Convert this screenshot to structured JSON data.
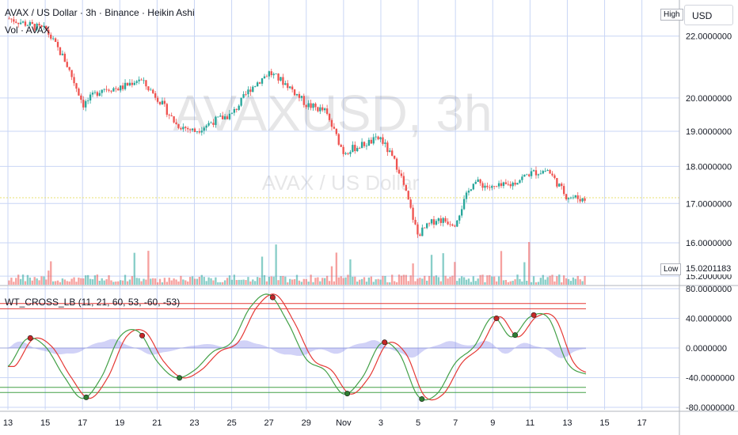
{
  "header": {
    "title": "AVAX / US Dollar · 3h · Binance · Heikin Ashi",
    "volume_label": "Vol · AVAX",
    "oscillator_label": "WT_CROSS_LB (11, 21, 60, 53, -60, -53)"
  },
  "watermark": {
    "main": "AVAXUSD, 3h",
    "sub": "AVAX / US Dollar"
  },
  "scale": {
    "currency": "USD",
    "high_flag": "High",
    "low_flag": "Low",
    "low_value": "15.0201183"
  },
  "colors": {
    "up": "#26a69a",
    "down": "#ef5350",
    "wave1": "#e53935",
    "wave2": "#43a047",
    "diff": "#7b7fe8",
    "ob": "#e53935",
    "os": "#43a047",
    "grid": "#c9d6f5"
  },
  "chart_data": [
    {
      "type": "candlestick",
      "title": "AVAX / US Dollar · 3h · Binance · Heikin Ashi",
      "y_ticks": [
        "22.0000000",
        "20.0000000",
        "19.0000000",
        "18.0000000",
        "17.0000000",
        "16.0000000",
        "15.2000000"
      ],
      "y_scale": "log",
      "ylim": [
        15.0,
        23.2
      ],
      "x_ticks": [
        "13",
        "15",
        "17",
        "19",
        "21",
        "23",
        "25",
        "27",
        "29",
        "Nov",
        "3",
        "5",
        "7",
        "9",
        "11",
        "13",
        "15",
        "17"
      ],
      "close_series": {
        "note": "approximate closes read at each date label",
        "x": [
          "Oct 13",
          "Oct 14",
          "Oct 15",
          "Oct 16",
          "Oct 17",
          "Oct 18",
          "Oct 19",
          "Oct 20",
          "Oct 21",
          "Oct 22",
          "Oct 23",
          "Oct 24",
          "Oct 25",
          "Oct 26",
          "Oct 27",
          "Oct 28",
          "Oct 29",
          "Oct 30",
          "Oct 31",
          "Nov 1",
          "Nov 2",
          "Nov 3",
          "Nov 4",
          "Nov 5",
          "Nov 6",
          "Nov 7",
          "Nov 8",
          "Nov 9",
          "Nov 10",
          "Nov 11",
          "Nov 12",
          "Nov 13"
        ],
        "values": [
          22.6,
          22.4,
          22.2,
          21.2,
          19.8,
          20.3,
          20.3,
          20.6,
          20.0,
          19.2,
          19.0,
          19.3,
          19.5,
          20.3,
          20.8,
          20.4,
          19.8,
          19.6,
          18.4,
          18.6,
          18.8,
          17.9,
          16.2,
          16.6,
          16.5,
          17.6,
          17.4,
          17.5,
          17.8,
          17.9,
          17.2,
          17.1
        ]
      }
    },
    {
      "type": "bar",
      "title": "Vol · AVAX",
      "note": "volume bars, no scale shown"
    },
    {
      "type": "line",
      "title": "WT_CROSS_LB (11, 21, 60, 53, -60, -53)",
      "y_ticks": [
        "80.0000000",
        "40.0000000",
        "0.0000000",
        "-40.0000000",
        "-80.0000000"
      ],
      "ylim": [
        -80,
        80
      ],
      "levels": {
        "overbought": [
          60,
          53
        ],
        "oversold": [
          -60,
          -53
        ]
      },
      "wave": {
        "x": [
          "Oct 13",
          "Oct 14",
          "Oct 15",
          "Oct 16",
          "Oct 17",
          "Oct 18",
          "Oct 19",
          "Oct 20",
          "Oct 21",
          "Oct 22",
          "Oct 23",
          "Oct 24",
          "Oct 25",
          "Oct 26",
          "Oct 27",
          "Oct 28",
          "Oct 29",
          "Oct 30",
          "Oct 31",
          "Nov 1",
          "Nov 2",
          "Nov 3",
          "Nov 4",
          "Nov 5",
          "Nov 6",
          "Nov 7",
          "Nov 8",
          "Nov 9",
          "Nov 10",
          "Nov 11",
          "Nov 12",
          "Nov 13"
        ],
        "values": [
          -25,
          12,
          2,
          -38,
          -68,
          -40,
          15,
          22,
          -18,
          -40,
          -30,
          -5,
          8,
          55,
          72,
          35,
          -15,
          -30,
          -62,
          -40,
          6,
          -8,
          -65,
          -62,
          -20,
          2,
          42,
          15,
          42,
          40,
          -20,
          -35
        ]
      }
    }
  ]
}
